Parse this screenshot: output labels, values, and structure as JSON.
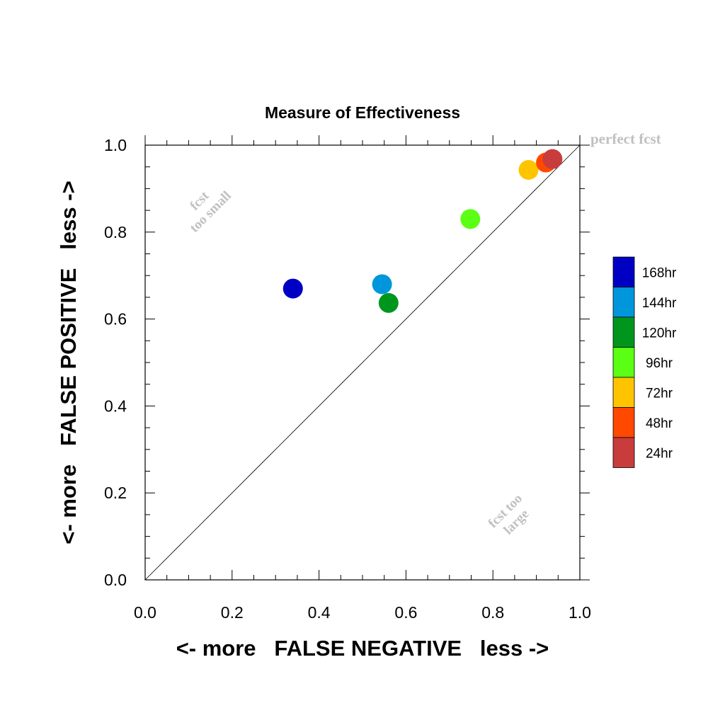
{
  "chart_data": {
    "type": "scatter",
    "title": "Measure of Effectiveness",
    "xlabel": "<- more   FALSE NEGATIVE   less ->",
    "ylabel": "<- more   FALSE POSITIVE   less ->",
    "xlim": [
      0.0,
      1.0
    ],
    "ylim": [
      0.0,
      1.0
    ],
    "x_ticks": [
      "0.0",
      "0.2",
      "0.4",
      "0.6",
      "0.8",
      "1.0"
    ],
    "y_ticks": [
      "0.0",
      "0.2",
      "0.4",
      "0.6",
      "0.8",
      "1.0"
    ],
    "grid": false,
    "diagonal_line": true,
    "legend_position": "right",
    "annotations": {
      "perfect": "perfect fcst",
      "too_small_line1": "fcst",
      "too_small_line2": "too small",
      "too_large_line1": "fcst too",
      "too_large_line2": "large"
    },
    "series": [
      {
        "name": "168hr",
        "color": "#0000c4",
        "x": 0.34,
        "y": 0.67
      },
      {
        "name": "144hr",
        "color": "#0096dc",
        "x": 0.545,
        "y": 0.68
      },
      {
        "name": "120hr",
        "color": "#00961e",
        "x": 0.56,
        "y": 0.637
      },
      {
        "name": "96hr",
        "color": "#5aff14",
        "x": 0.748,
        "y": 0.83
      },
      {
        "name": "72hr",
        "color": "#ffc400",
        "x": 0.882,
        "y": 0.943
      },
      {
        "name": "48hr",
        "color": "#ff4800",
        "x": 0.922,
        "y": 0.96
      },
      {
        "name": "24hr",
        "color": "#c83c3c",
        "x": 0.937,
        "y": 0.968
      }
    ]
  }
}
